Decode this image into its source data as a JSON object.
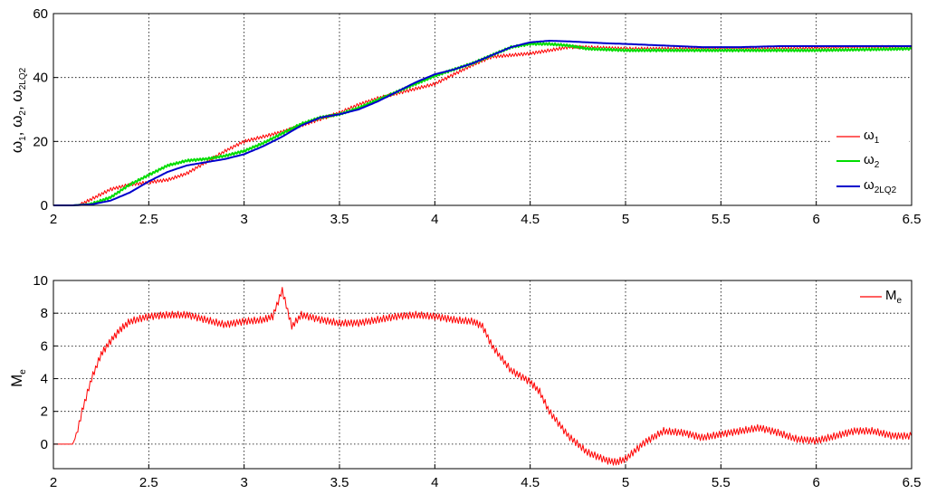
{
  "chart_data": [
    {
      "type": "line",
      "ylabel": "ω1, ω2, ω2LQ2",
      "ylabel_parts": {
        "w": "ω",
        "s1": "1",
        "sep1": ", ω",
        "s2": "2",
        "sep2": ", ω",
        "s3": "2LQ2"
      },
      "xlim": [
        2,
        6.5
      ],
      "ylim": [
        0,
        60
      ],
      "xticks": [
        "2",
        "2.5",
        "3",
        "3.5",
        "4",
        "4.5",
        "5",
        "5.5",
        "6",
        "6.5"
      ],
      "yticks": [
        "0",
        "20",
        "40",
        "60"
      ],
      "grid": true,
      "legend_position": "right",
      "legend": [
        {
          "symbol": "ω",
          "sub": "1",
          "color": "#ff0000"
        },
        {
          "symbol": "ω",
          "sub": "2",
          "color": "#00dd00"
        },
        {
          "symbol": "ω",
          "sub": "2LQ2",
          "color": "#0000cc"
        }
      ],
      "series": [
        {
          "name": "ω1",
          "color": "#ff0000",
          "x": [
            2.0,
            2.1,
            2.15,
            2.2,
            2.3,
            2.4,
            2.5,
            2.6,
            2.7,
            2.8,
            2.9,
            3.0,
            3.1,
            3.2,
            3.3,
            3.4,
            3.5,
            3.6,
            3.7,
            3.8,
            3.9,
            4.0,
            4.1,
            4.2,
            4.3,
            4.4,
            4.5,
            4.6,
            4.7,
            4.8,
            5.0,
            5.2,
            5.4,
            5.6,
            5.8,
            6.0,
            6.2,
            6.5
          ],
          "y": [
            0,
            0,
            0.5,
            2,
            5,
            6.5,
            7.2,
            8,
            10,
            13.5,
            17,
            20,
            21.5,
            23,
            25,
            27,
            29,
            31.5,
            33.5,
            35,
            36.5,
            38,
            41,
            44,
            46.5,
            47,
            47.5,
            48.5,
            49.5,
            49.5,
            49,
            49,
            49,
            49,
            49,
            49.2,
            49.5,
            49.5
          ]
        },
        {
          "name": "ω2",
          "color": "#00dd00",
          "x": [
            2.0,
            2.1,
            2.2,
            2.3,
            2.4,
            2.5,
            2.6,
            2.7,
            2.8,
            2.9,
            3.0,
            3.1,
            3.2,
            3.3,
            3.4,
            3.5,
            3.6,
            3.7,
            3.8,
            3.9,
            4.0,
            4.1,
            4.2,
            4.3,
            4.4,
            4.5,
            4.6,
            4.7,
            4.8,
            5.0,
            5.2,
            5.4,
            5.6,
            5.8,
            6.0,
            6.2,
            6.5
          ],
          "y": [
            0,
            0,
            0.5,
            2.5,
            6.5,
            9.5,
            12.5,
            14,
            14.5,
            15.5,
            17,
            19.5,
            22.5,
            25.5,
            27.5,
            28.5,
            30.5,
            33,
            35.5,
            38,
            40.5,
            42.5,
            44.5,
            47,
            49.5,
            50.5,
            50.5,
            50,
            49,
            48.5,
            48.5,
            48.5,
            48.5,
            48.5,
            48.5,
            48.7,
            49
          ]
        },
        {
          "name": "ω2LQ2",
          "color": "#0000cc",
          "x": [
            2.0,
            2.1,
            2.2,
            2.3,
            2.4,
            2.5,
            2.6,
            2.7,
            2.8,
            2.9,
            3.0,
            3.1,
            3.2,
            3.3,
            3.4,
            3.5,
            3.6,
            3.7,
            3.8,
            3.9,
            4.0,
            4.1,
            4.2,
            4.3,
            4.4,
            4.5,
            4.6,
            4.7,
            4.8,
            4.9,
            5.0,
            5.2,
            5.4,
            5.6,
            5.8,
            6.0,
            6.2,
            6.5
          ],
          "y": [
            0,
            0,
            0.3,
            1.5,
            4,
            7.5,
            10.5,
            12.5,
            13.5,
            14.5,
            16,
            18.5,
            21.5,
            25,
            27.5,
            28.5,
            30,
            32.5,
            35.5,
            38.5,
            41,
            42.5,
            44.5,
            47,
            49.5,
            51,
            51.5,
            51.3,
            51,
            50.7,
            50.5,
            50,
            49.5,
            49.5,
            49.8,
            49.8,
            49.8,
            49.8
          ]
        }
      ]
    },
    {
      "type": "line",
      "ylabel": "Me",
      "ylabel_parts": {
        "m": "M",
        "s": "e"
      },
      "xlim": [
        2,
        6.5
      ],
      "ylim": [
        -1.5,
        10
      ],
      "xticks": [
        "2",
        "2.5",
        "3",
        "3.5",
        "4",
        "4.5",
        "5",
        "5.5",
        "6",
        "6.5"
      ],
      "yticks": [
        "0",
        "2",
        "4",
        "6",
        "8",
        "10"
      ],
      "grid": true,
      "legend_position": "top-right",
      "legend": [
        {
          "symbol": "M",
          "sub": "e",
          "color": "#ff0000"
        }
      ],
      "series": [
        {
          "name": "Me",
          "color": "#ff0000",
          "x": [
            2.0,
            2.1,
            2.12,
            2.15,
            2.2,
            2.25,
            2.3,
            2.35,
            2.4,
            2.5,
            2.6,
            2.7,
            2.8,
            2.9,
            3.0,
            3.1,
            3.15,
            3.2,
            3.25,
            3.3,
            3.4,
            3.5,
            3.6,
            3.7,
            3.8,
            3.9,
            4.0,
            4.1,
            4.2,
            4.25,
            4.3,
            4.4,
            4.5,
            4.55,
            4.6,
            4.7,
            4.8,
            4.9,
            4.95,
            5.0,
            5.1,
            5.2,
            5.3,
            5.4,
            5.5,
            5.6,
            5.7,
            5.8,
            5.9,
            6.0,
            6.1,
            6.2,
            6.3,
            6.4,
            6.5
          ],
          "y": [
            0,
            0,
            0.5,
            2,
            4,
            5.5,
            6.3,
            7,
            7.5,
            7.8,
            7.9,
            7.9,
            7.6,
            7.3,
            7.5,
            7.6,
            7.8,
            9.4,
            7.2,
            7.9,
            7.6,
            7.4,
            7.4,
            7.6,
            7.8,
            7.9,
            7.8,
            7.6,
            7.5,
            7.2,
            6,
            4.5,
            3.8,
            3.2,
            2,
            0.5,
            -0.5,
            -1.0,
            -1.1,
            -0.9,
            0.1,
            0.8,
            0.7,
            0.4,
            0.6,
            0.8,
            1.0,
            0.7,
            0.3,
            0.2,
            0.5,
            0.8,
            0.8,
            0.5,
            0.5
          ]
        }
      ]
    }
  ]
}
